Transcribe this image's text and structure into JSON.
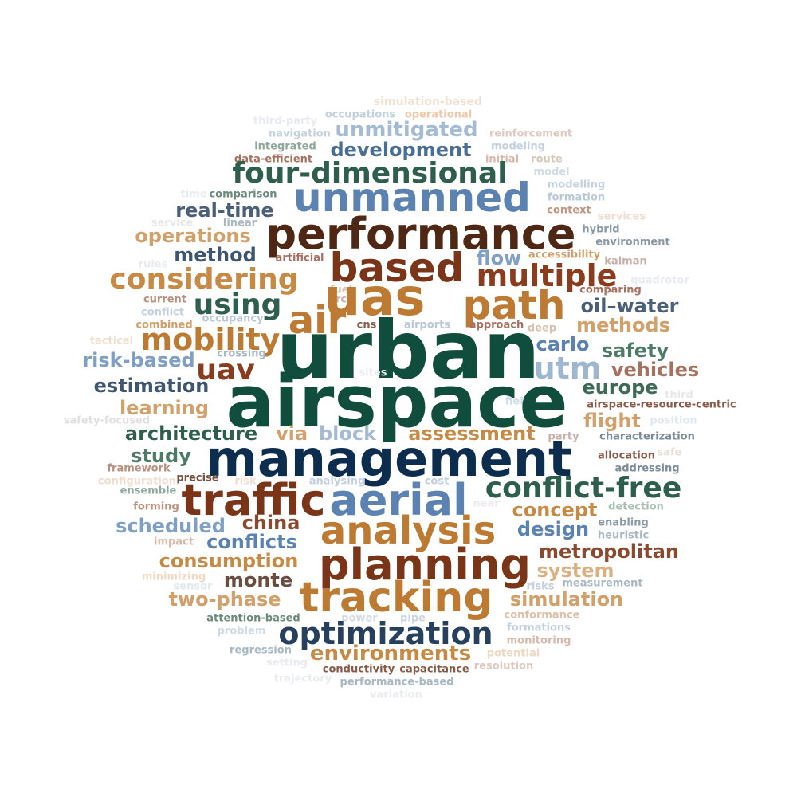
{
  "palette": {
    "dark_green": "#114d3c",
    "green": "#2e5e4e",
    "navy": "#0c2d4e",
    "slate": "#4a5f78",
    "blue": "#5b82b0",
    "light_blue": "#8fa9c9",
    "brown": "#7a3418",
    "dark_brown": "#4e2814",
    "ochre": "#bd7a32",
    "tan": "#d2a06a",
    "rose": "#a8705e"
  },
  "words": [
    {
      "text": "airspace",
      "color": "#114d3c"
    },
    {
      "text": "urban",
      "color": "#114d3c"
    },
    {
      "text": "management",
      "color": "#0c2d4e"
    },
    {
      "text": "performance",
      "color": "#4e2814"
    },
    {
      "text": "uas",
      "color": "#bd7a32"
    },
    {
      "text": "traffic",
      "color": "#7a3418"
    },
    {
      "text": "aerial",
      "color": "#5b82b0"
    },
    {
      "text": "planning",
      "color": "#7a3418"
    },
    {
      "text": "tracking",
      "color": "#bd7a32"
    },
    {
      "text": "analysis",
      "color": "#bd7a32"
    },
    {
      "text": "unmanned",
      "color": "#5b82b0"
    },
    {
      "text": "based",
      "color": "#7a3418"
    },
    {
      "text": "path",
      "color": "#bd7a32"
    },
    {
      "text": "air",
      "color": "#bd7a32"
    },
    {
      "text": "optimization",
      "color": "#27405e"
    },
    {
      "text": "four-dimensional",
      "color": "#2e5e4e"
    },
    {
      "text": "conflict-free",
      "color": "#2e5e4e"
    },
    {
      "text": "considering",
      "color": "#c78a45"
    },
    {
      "text": "multiple",
      "color": "#8a3d1e"
    },
    {
      "text": "mobility",
      "color": "#bd7a32"
    },
    {
      "text": "using",
      "color": "#2e5e4e"
    },
    {
      "text": "utm",
      "color": "#9fb6d0"
    },
    {
      "text": "uav",
      "color": "#8a3d1e"
    },
    {
      "text": "unmitigated",
      "color": "#a5bbd4"
    },
    {
      "text": "development",
      "color": "#4a6f95"
    },
    {
      "text": "environments",
      "color": "#c78a45"
    },
    {
      "text": "metropolitan",
      "color": "#8a4a30"
    },
    {
      "text": "consumption",
      "color": "#c78a45"
    },
    {
      "text": "simulation",
      "color": "#d2a06a"
    },
    {
      "text": "two-phase",
      "color": "#d2a06a"
    },
    {
      "text": "architecture",
      "color": "#2e5e4e"
    },
    {
      "text": "assessment",
      "color": "#c78a45"
    },
    {
      "text": "scheduled",
      "color": "#7fa0c4"
    },
    {
      "text": "conflicts",
      "color": "#5b82b0"
    },
    {
      "text": "risk-based",
      "color": "#7fa0c4"
    },
    {
      "text": "estimation",
      "color": "#3f5670"
    },
    {
      "text": "learning",
      "color": "#d2a06a"
    },
    {
      "text": "operations",
      "color": "#d2a06a"
    },
    {
      "text": "real-time",
      "color": "#4a5f78"
    },
    {
      "text": "method",
      "color": "#3f5670"
    },
    {
      "text": "vehicles",
      "color": "#a8705e"
    },
    {
      "text": "methods",
      "color": "#d2a06a"
    },
    {
      "text": "concept",
      "color": "#c78a45"
    },
    {
      "text": "design",
      "color": "#5b82b0"
    },
    {
      "text": "system",
      "color": "#dab080"
    },
    {
      "text": "monte",
      "color": "#6a4c40"
    },
    {
      "text": "china",
      "color": "#8a4a30"
    },
    {
      "text": "block",
      "color": "#a5bbd4"
    },
    {
      "text": "via",
      "color": "#d2a06a"
    },
    {
      "text": "study",
      "color": "#4e7a68"
    },
    {
      "text": "flight",
      "color": "#d2a06a"
    },
    {
      "text": "europe",
      "color": "#3f6a58"
    },
    {
      "text": "safety",
      "color": "#4e7a68"
    },
    {
      "text": "carlo",
      "color": "#5b82b0"
    },
    {
      "text": "flow",
      "color": "#7fa0c4"
    },
    {
      "text": "oil–water",
      "color": "#4a5f78"
    },
    {
      "text": "simulation-based",
      "color": "#f0e0d2"
    },
    {
      "text": "occupations",
      "color": "#c2d0e0"
    },
    {
      "text": "operational",
      "color": "#f0c8a8"
    },
    {
      "text": "third-party",
      "color": "#e8ecf0"
    },
    {
      "text": "navigation",
      "color": "#c2d0e0"
    },
    {
      "text": "reinforcement",
      "color": "#e0c8c0"
    },
    {
      "text": "integrated",
      "color": "#8fa89c"
    },
    {
      "text": "modeling",
      "color": "#c2d0e0"
    },
    {
      "text": "data-efficient",
      "color": "#a8705e"
    },
    {
      "text": "initial",
      "color": "#d8b8a8"
    },
    {
      "text": "route",
      "color": "#d8c8b8"
    },
    {
      "text": "model",
      "color": "#d0dbe8"
    },
    {
      "text": "time",
      "color": "#e8ecf0"
    },
    {
      "text": "comparison",
      "color": "#6a8a7a"
    },
    {
      "text": "modelling",
      "color": "#c2d0e0"
    },
    {
      "text": "formation",
      "color": "#b8c8da"
    },
    {
      "text": "service",
      "color": "#e8e8ea"
    },
    {
      "text": "linear",
      "color": "#a8b8c4"
    },
    {
      "text": "context",
      "color": "#c49880"
    },
    {
      "text": "services",
      "color": "#f0ddd0"
    },
    {
      "text": "hybrid",
      "color": "#8a9aa8"
    },
    {
      "text": "environment",
      "color": "#8a9aa8"
    },
    {
      "text": "artificial",
      "color": "#a8705e"
    },
    {
      "text": "accessibility",
      "color": "#d2a06a"
    },
    {
      "text": "kalman",
      "color": "#c8b0a8"
    },
    {
      "text": "rules",
      "color": "#e8ecf0"
    },
    {
      "text": "quadrotor",
      "color": "#e8ecf0"
    },
    {
      "text": "fuel",
      "color": "#d8c0b0"
    },
    {
      "text": "crcc",
      "color": "#c8b0a8"
    },
    {
      "text": "comparing",
      "color": "#a8705e"
    },
    {
      "text": "current",
      "color": "#b89080"
    },
    {
      "text": "conflict",
      "color": "#c2d0e0"
    },
    {
      "text": "occupancy",
      "color": "#b8c8d4"
    },
    {
      "text": "combined",
      "color": "#d2a06a"
    },
    {
      "text": "cns",
      "color": "#8a5a48"
    },
    {
      "text": "airports",
      "color": "#b8c8da"
    },
    {
      "text": "approach",
      "color": "#a8705e"
    },
    {
      "text": "deep",
      "color": "#d8c0b0"
    },
    {
      "text": "tactical",
      "color": "#f0e0d0"
    },
    {
      "text": "crossing",
      "color": "#a8b8c4"
    },
    {
      "text": "sites",
      "color": "#e8ecf0"
    },
    {
      "text": "third",
      "color": "#e8e8ea"
    },
    {
      "text": "airspace-resource-centric",
      "color": "#8a5a48"
    },
    {
      "text": "field",
      "color": "#d0dbe8"
    },
    {
      "text": "safety-focused",
      "color": "#e0e0e2"
    },
    {
      "text": "position",
      "color": "#e0e8f0"
    },
    {
      "text": "party",
      "color": "#c8b0a8"
    },
    {
      "text": "characterization",
      "color": "#7a8a98"
    },
    {
      "text": "safe",
      "color": "#e8e0d8"
    },
    {
      "text": "allocation",
      "color": "#8a5a48"
    },
    {
      "text": "framework",
      "color": "#b89080"
    },
    {
      "text": "configuration",
      "color": "#7a8a98"
    },
    {
      "text": "addressing",
      "color": "#7a5040"
    },
    {
      "text": "precise",
      "color": "#f0ddd0"
    },
    {
      "text": "risk",
      "color": "#f0ddd0"
    },
    {
      "text": "analysing",
      "color": "#c2d0e0"
    },
    {
      "text": "cost",
      "color": "#c2d0e0"
    },
    {
      "text": "ensemble",
      "color": "#8fa89c"
    },
    {
      "text": "forming",
      "color": "#b89080"
    },
    {
      "text": "near",
      "color": "#e8ecf0"
    },
    {
      "text": "detection",
      "color": "#a8c0b4"
    },
    {
      "text": "enabling",
      "color": "#8a9aa8"
    },
    {
      "text": "heuristic",
      "color": "#a8b8c4"
    },
    {
      "text": "impact",
      "color": "#d8b8a8"
    },
    {
      "text": "minimizing",
      "color": "#f0d8c0"
    },
    {
      "text": "sensor",
      "color": "#e0e8f0"
    },
    {
      "text": "measurement",
      "color": "#a8b8c4"
    },
    {
      "text": "risks",
      "color": "#c2d0e0"
    },
    {
      "text": "attention-based",
      "color": "#6a8a7a"
    },
    {
      "text": "power",
      "color": "#d0dbe8"
    },
    {
      "text": "pipe",
      "color": "#c8d4e0"
    },
    {
      "text": "conformance",
      "color": "#e0c0a8"
    },
    {
      "text": "problem",
      "color": "#d0dbe8"
    },
    {
      "text": "formations",
      "color": "#c2d0e0"
    },
    {
      "text": "monitoring",
      "color": "#d8b8a8"
    },
    {
      "text": "regression",
      "color": "#a8b8c4"
    },
    {
      "text": "potential",
      "color": "#f0d8c0"
    },
    {
      "text": "setting",
      "color": "#e8ecf0"
    },
    {
      "text": "resolution",
      "color": "#e0c8c0"
    },
    {
      "text": "conductivity",
      "color": "#8a5a48"
    },
    {
      "text": "capacitance",
      "color": "#8a5a48"
    },
    {
      "text": "trajectory",
      "color": "#e8ecf0"
    },
    {
      "text": "performance-based",
      "color": "#a8b8c4"
    },
    {
      "text": "variation",
      "color": "#e8ecf0"
    }
  ]
}
